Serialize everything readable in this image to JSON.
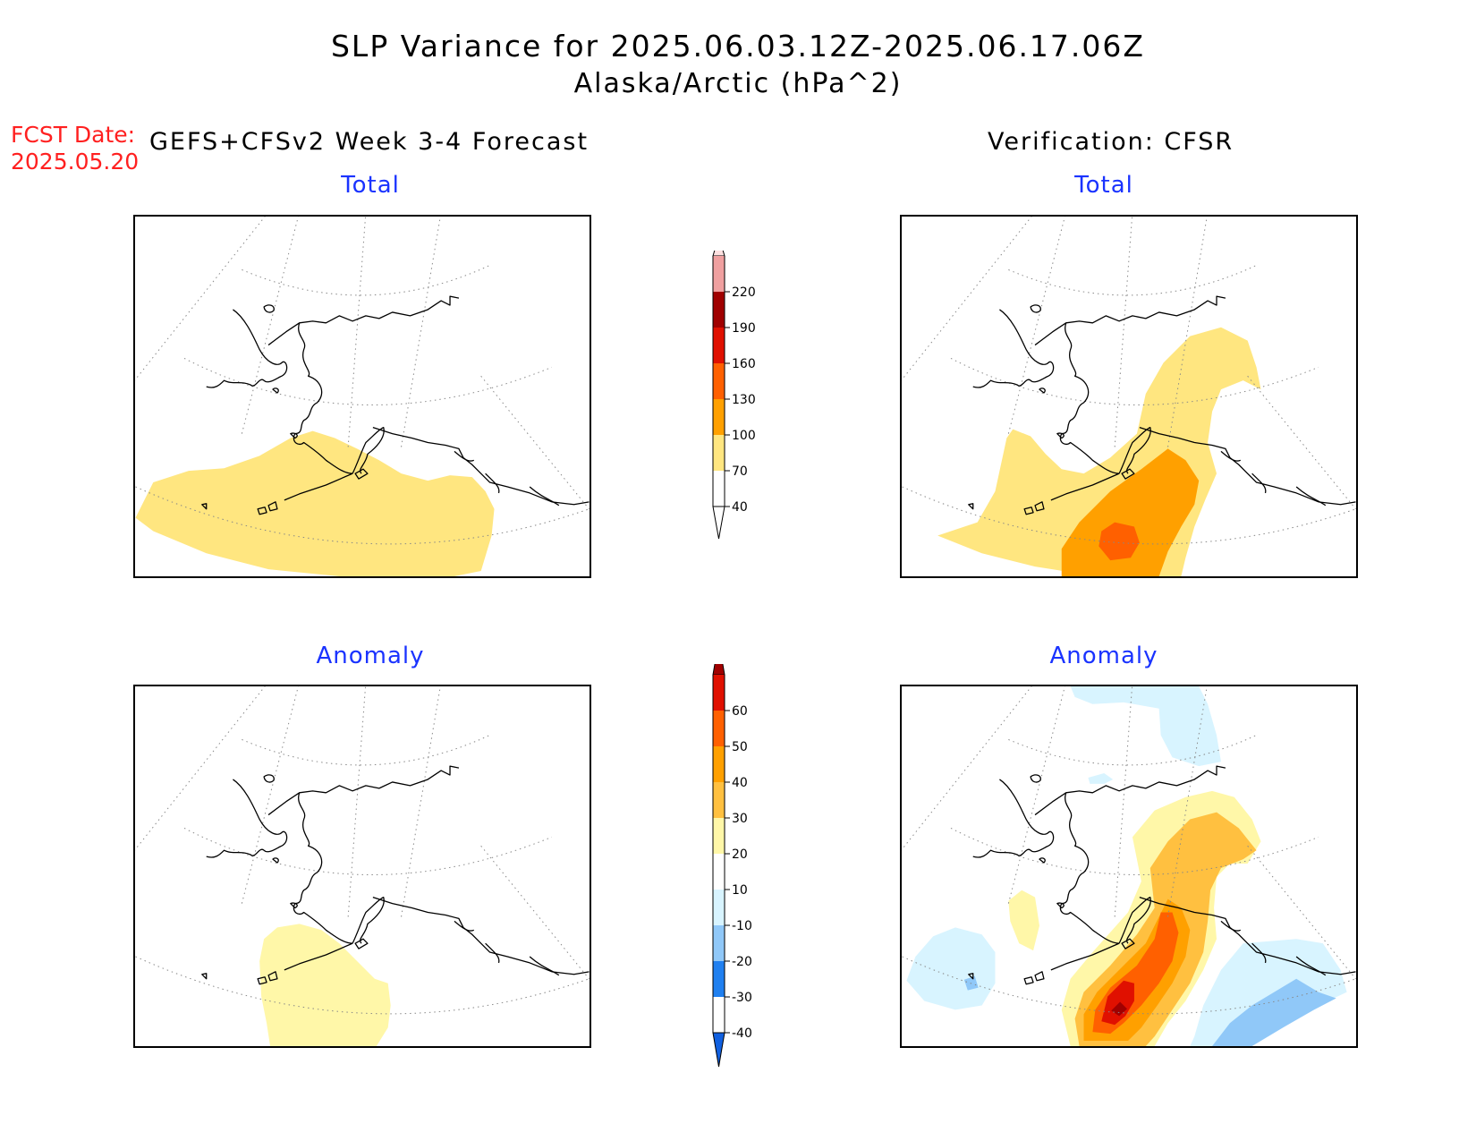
{
  "header": {
    "title": "SLP Variance for 2025.06.03.12Z-2025.06.17.06Z",
    "subtitle": "Alaska/Arctic (hPa^2)",
    "fcst_label": "FCST Date:",
    "fcst_date": "2025.05.20",
    "left_column": "GEFS+CFSv2 Week 3-4 Forecast",
    "right_column": "Verification: CFSR"
  },
  "panels": {
    "forecast_total": {
      "title": "Total"
    },
    "forecast_anomaly": {
      "title": "Anomaly"
    },
    "verification_total": {
      "title": "Total"
    },
    "verification_anomaly": {
      "title": "Anomaly"
    }
  },
  "colorbars": {
    "total": {
      "labels": [
        "40",
        "70",
        "100",
        "130",
        "160",
        "190",
        "220"
      ],
      "colors": [
        "#ffffff",
        "#ffe680",
        "#ffa000",
        "#ff6000",
        "#e01000",
        "#a00000",
        "#f0a0a0",
        "#fde0e0"
      ]
    },
    "anomaly": {
      "labels": [
        "-40",
        "-30",
        "-20",
        "-10",
        "10",
        "20",
        "30",
        "40",
        "50",
        "60"
      ],
      "colors": [
        "#1060e0",
        "#2080f0",
        "#90c8f8",
        "#d8f4ff",
        "#ffffff",
        "#fff7a8",
        "#ffc040",
        "#ffa000",
        "#ff6000",
        "#e01000",
        "#a00000"
      ]
    }
  },
  "shading": {
    "light_yellow": "#ffe680",
    "pale_yellow": "#fff7a8",
    "orange": "#ffa000",
    "orange_mid": "#ffc040",
    "red_orange": "#ff6000",
    "red": "#e01000",
    "dark_red": "#a00000",
    "light_blue": "#d8f4ff",
    "mid_blue": "#90c8f8",
    "coast": "#000000",
    "grid": "#888888"
  }
}
